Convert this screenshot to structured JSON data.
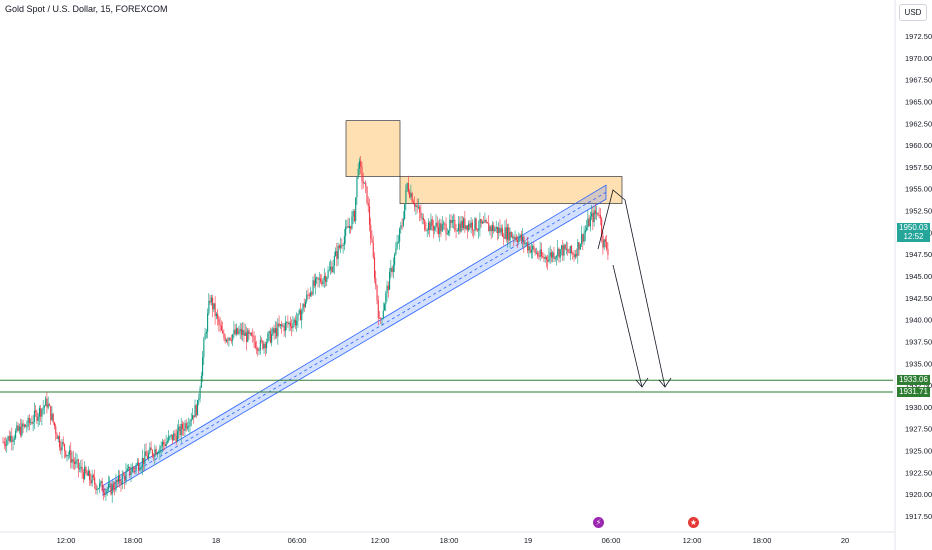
{
  "header": {
    "title": "Gold Spot / U.S. Dollar, 15, FOREXCOM",
    "currency": "USD"
  },
  "price_axis": {
    "labels": [
      "1972.50",
      "1970.00",
      "1967.50",
      "1965.00",
      "1962.50",
      "1960.00",
      "1957.50",
      "1955.00",
      "1952.50",
      "1950.00",
      "1947.50",
      "1945.00",
      "1942.50",
      "1940.00",
      "1937.50",
      "1935.00",
      "1932.50",
      "1930.00",
      "1927.50",
      "1925.00",
      "1922.50",
      "1920.00",
      "1917.50"
    ]
  },
  "time_axis": {
    "labels": [
      "12:00",
      "18:00",
      "18",
      "06:00",
      "12:00",
      "18:00",
      "19",
      "06:00",
      "12:00",
      "18:00",
      "20"
    ]
  },
  "last_price": {
    "value": "1950.03",
    "countdown": "12:52",
    "color": "#26a69a"
  },
  "levels": [
    {
      "price": 1933.06,
      "label": "1933.06",
      "color": "#2e7d32"
    },
    {
      "price": 1931.71,
      "label": "1931.71",
      "color": "#2e7d32"
    }
  ],
  "zones": [
    {
      "price_top": 1962.8,
      "price_bottom": 1956.4,
      "color": "#ffe0b2"
    },
    {
      "price_top": 1956.4,
      "price_bottom": 1953.3,
      "color": "#ffe0b2"
    }
  ],
  "colors": {
    "up": "#089981",
    "down": "#f23645",
    "channel": "#2962ff",
    "arrow": "#131722"
  },
  "events": [
    {
      "icon": "lightning-icon",
      "glyph": "⚡",
      "color": "#9c27b0"
    },
    {
      "icon": "us-flag-icon",
      "glyph": "★",
      "color": "#e53935"
    }
  ],
  "chart_data": {
    "type": "candlestick",
    "title": "Gold Spot / U.S. Dollar, 15, FOREXCOM",
    "ylim": [
      1916.5,
      1975.0
    ],
    "x_unit": "15-minute bars",
    "series": [
      {
        "name": "price",
        "keypoints": [
          [
            0,
            1926
          ],
          [
            20,
            1928
          ],
          [
            35,
            1930.5
          ],
          [
            45,
            1926
          ],
          [
            60,
            1923
          ],
          [
            75,
            1921
          ],
          [
            85,
            1920.5
          ],
          [
            100,
            1922.5
          ],
          [
            120,
            1925
          ],
          [
            140,
            1927
          ],
          [
            155,
            1930
          ],
          [
            160,
            1937
          ],
          [
            165,
            1942.5
          ],
          [
            175,
            1938
          ],
          [
            190,
            1938.5
          ],
          [
            205,
            1937
          ],
          [
            220,
            1939
          ],
          [
            235,
            1940
          ],
          [
            245,
            1943.5
          ],
          [
            260,
            1945.5
          ],
          [
            270,
            1949
          ],
          [
            280,
            1952
          ],
          [
            283,
            1958
          ],
          [
            290,
            1954
          ],
          [
            300,
            1939.5
          ],
          [
            310,
            1946
          ],
          [
            318,
            1951
          ],
          [
            322,
            1955.5
          ],
          [
            335,
            1951
          ],
          [
            350,
            1950.5
          ],
          [
            370,
            1951
          ],
          [
            390,
            1950.5
          ],
          [
            410,
            1949.5
          ],
          [
            430,
            1947
          ],
          [
            445,
            1948
          ],
          [
            455,
            1947.5
          ],
          [
            468,
            1951.5
          ],
          [
            475,
            1952.5
          ],
          [
            478,
            1949
          ],
          [
            482,
            1948
          ]
        ]
      }
    ],
    "levels": [
      1933.06,
      1931.71
    ],
    "last_price": 1950.03
  }
}
